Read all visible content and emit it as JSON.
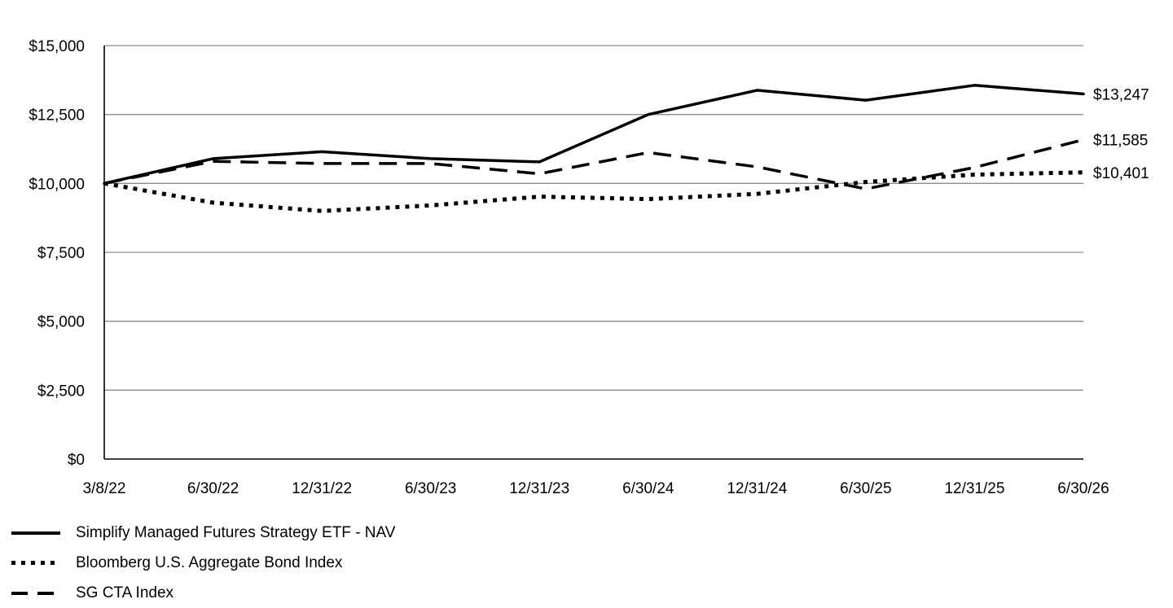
{
  "chart_data": {
    "type": "line",
    "x": [
      "3/8/22",
      "6/30/22",
      "12/31/22",
      "6/30/23",
      "12/31/23",
      "6/30/24",
      "12/31/24",
      "6/30/25",
      "12/31/25",
      "6/30/26"
    ],
    "y_ticks": [
      "$0",
      "$2,500",
      "$5,000",
      "$7,500",
      "$10,000",
      "$12,500",
      "$15,000"
    ],
    "ylim": [
      0,
      15000
    ],
    "grid": true,
    "legend_position": "bottom-left",
    "series": [
      {
        "name": "Simplify Managed Futures Strategy ETF - NAV",
        "style": "solid",
        "values": [
          10000,
          10900,
          11150,
          10900,
          10780,
          12500,
          13380,
          13020,
          13560,
          13247
        ],
        "end_label": "$13,247"
      },
      {
        "name": "Bloomberg U.S. Aggregate Bond Index",
        "style": "dotted",
        "values": [
          10000,
          9300,
          9000,
          9200,
          9520,
          9430,
          9620,
          10050,
          10320,
          10401
        ],
        "end_label": "$10,401"
      },
      {
        "name": "SG CTA Index",
        "style": "dashed",
        "values": [
          10000,
          10800,
          10720,
          10720,
          10350,
          11120,
          10600,
          9800,
          10580,
          11585
        ],
        "end_label": "$11,585"
      }
    ]
  }
}
